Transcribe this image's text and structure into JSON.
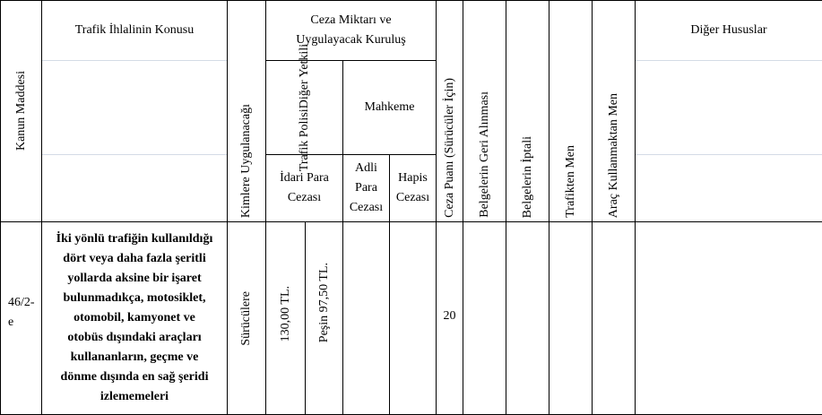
{
  "header": {
    "kanun_maddesi": "Kanun Maddesi",
    "konu": "Trafik İhlalinin Konusu",
    "kimlere": "Kimlere Uygulanacağı",
    "ceza_miktari": [
      "Ceza Miktarı ve",
      "Uygulayacak Kuruluş"
    ],
    "trafik_polisi": [
      "Trafik Polisi",
      "Diğer Yetkili"
    ],
    "mahkeme": "Mahkeme",
    "idari_para": [
      "İdari Para",
      "Cezası"
    ],
    "adli_para": [
      "Adli",
      "Para",
      "Cezası"
    ],
    "hapis": [
      "Hapis",
      "Cezası"
    ],
    "ceza_puani": "Ceza Puanı (Sürücüler İçin)",
    "geri_alinmasi": "Belgelerin Geri Alınması",
    "iptali": "Belgelerin İptali",
    "trafikten_men": "Trafikten Men",
    "arac_men": "Araç Kullanmaktan Men",
    "diger": "Diğer Hususlar"
  },
  "row": {
    "madde": [
      "46/2-",
      "e"
    ],
    "konu": [
      "İki yönlü trafiğin kullanıldığı",
      "dört veya daha fazla şeritli",
      "yollarda aksine bir işaret",
      "bulunmadıkça, motosiklet,",
      "otomobil, kamyonet ve",
      "otobüs dışındaki araçları",
      "kullananların, geçme ve",
      "dönme dışında en sağ şeridi",
      "izlememeleri"
    ],
    "kimlere": "Sürücülere",
    "idari": "130,00 TL.",
    "pesin": "Peşin 97,50 TL.",
    "ceza_puani": "20"
  }
}
